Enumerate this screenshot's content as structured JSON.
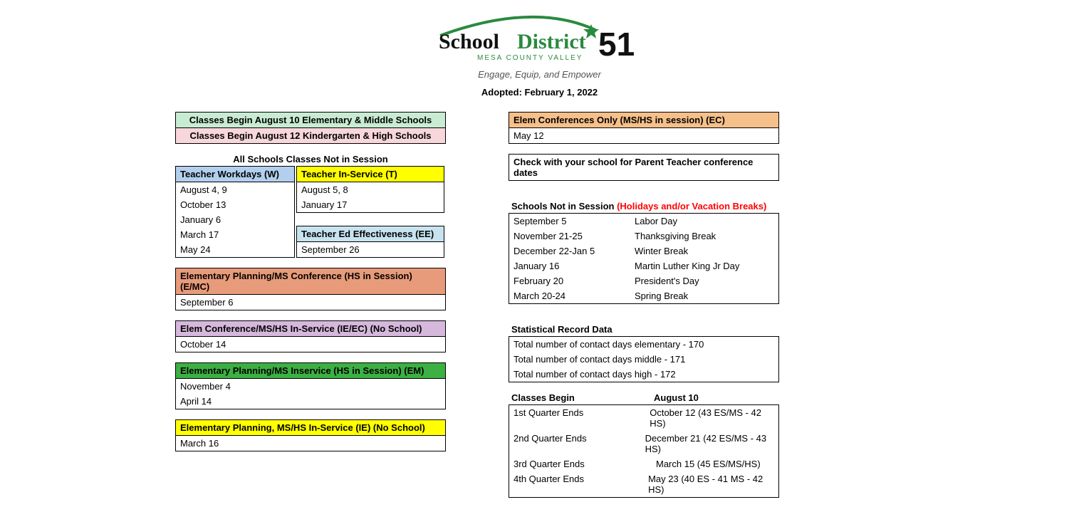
{
  "logo": {
    "text_school": "School",
    "text_district": "District",
    "text_number": "51",
    "text_sub": "MESA COUNTY VALLEY",
    "tagline": "Engage, Equip, and Empower",
    "green": "#2a8a3f",
    "black": "#111111"
  },
  "adopted": "Adopted: February 1, 2022",
  "colors": {
    "green_begin": "#c8ecd2",
    "pink_begin": "#f8d7da",
    "blue_workday": "#b3cfee",
    "yellow_inservice": "#ffff00",
    "blue_ee": "#c8e3f0",
    "orange_emc": "#e89b7a",
    "purple_ieec": "#d6b8dd",
    "green_em": "#3cb043",
    "yellow_ie": "#ffff00",
    "orange_ec": "#f6c08a"
  },
  "left": {
    "begin1": "Classes Begin August 10 Elementary & Middle Schools",
    "begin2": "Classes Begin August 12 Kindergarten & High Schools",
    "not_in_session_title": "All Schools Classes Not in Session",
    "workdays": {
      "header": "Teacher Workdays (W)",
      "dates": [
        "August 4, 9",
        "October 13",
        "January 6",
        "March 17",
        "May 24"
      ]
    },
    "inservice": {
      "header": "Teacher In-Service (T)",
      "dates": [
        "August 5, 8",
        "January 17"
      ]
    },
    "ee": {
      "header": "Teacher Ed Effectiveness (EE)",
      "dates": [
        "September 26"
      ]
    },
    "emc": {
      "header": "Elementary Planning/MS Conference (HS in Session) (E/MC)",
      "dates": [
        "September 6"
      ]
    },
    "ieec": {
      "header": "Elem Conference/MS/HS In-Service (IE/EC) (No School)",
      "dates": [
        "October 14"
      ]
    },
    "em": {
      "header": "Elementary Planning/MS Inservice (HS in Session) (EM)",
      "dates": [
        "November 4",
        "April 14"
      ]
    },
    "ie": {
      "header": "Elementary Planning, MS/HS In-Service (IE) (No School)",
      "dates": [
        "March 16"
      ]
    }
  },
  "right": {
    "ec": {
      "header": "Elem Conferences Only (MS/HS in session) (EC)",
      "dates": [
        "May 12"
      ]
    },
    "check_note": "Check with your school for Parent Teacher conference dates",
    "holidays_title_a": "Schools Not in Session ",
    "holidays_title_b": "(Holidays and/or Vacation Breaks)",
    "holidays": [
      {
        "date": "September 5",
        "name": "Labor Day"
      },
      {
        "date": "November 21-25",
        "name": "Thanksgiving Break"
      },
      {
        "date": "December 22-Jan 5",
        "name": "Winter Break"
      },
      {
        "date": "January 16",
        "name": "Martin Luther King Jr Day"
      },
      {
        "date": "February 20",
        "name": "President's Day"
      },
      {
        "date": "March 20-24",
        "name": "Spring Break"
      }
    ],
    "stat_title": "Statistical Record Data",
    "stats": [
      "Total number of contact days elementary  - 170",
      "Total number of contact days middle - 171",
      "Total number of contact days high - 172"
    ],
    "quarters_header_left": "Classes Begin",
    "quarters_header_right": "August 10",
    "quarters": [
      {
        "label": "1st Quarter Ends",
        "val": "October 12 (43 ES/MS - 42 HS)"
      },
      {
        "label": "2nd Quarter Ends",
        "val": "December 21  (42 ES/MS - 43 HS)"
      },
      {
        "label": "3rd Quarter Ends",
        "val": "March 15 (45 ES/MS/HS)"
      },
      {
        "label": "4th Quarter Ends",
        "val": "May 23 (40 ES - 41 MS - 42 HS)"
      }
    ]
  }
}
